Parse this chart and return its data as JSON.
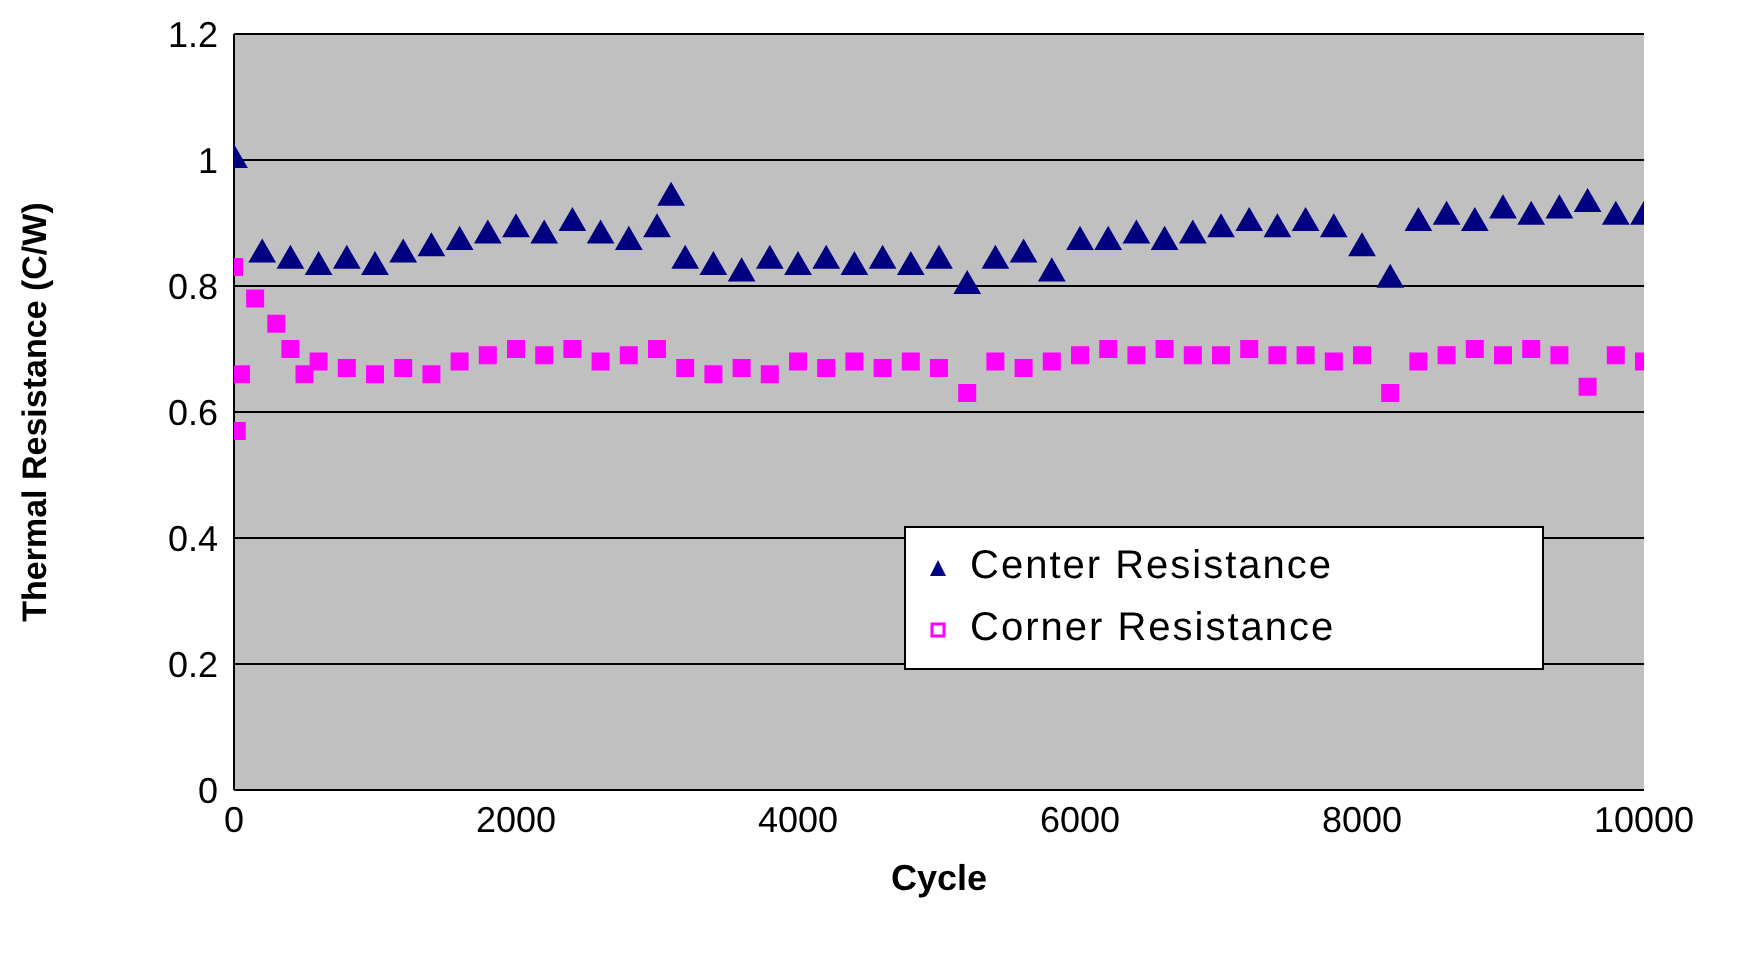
{
  "chart_data": {
    "type": "scatter",
    "xlabel": "Cycle",
    "ylabel": "Thermal Resistance (C/W)",
    "xlim": [
      0,
      10000
    ],
    "xticks": [
      0,
      2000,
      4000,
      6000,
      8000,
      10000
    ],
    "ylim": [
      0,
      1.2
    ],
    "yticks": [
      0,
      0.2,
      0.4,
      0.6,
      0.8,
      1,
      1.2
    ],
    "grid": "y",
    "legend": "bottom right",
    "series": [
      {
        "name": "Center Resistance",
        "color": "#000080",
        "marker": "triangle",
        "x": [
          0,
          200,
          400,
          600,
          800,
          1000,
          1200,
          1400,
          1600,
          1800,
          2000,
          2200,
          2400,
          2600,
          2800,
          3000,
          3100,
          3200,
          3400,
          3600,
          3800,
          4000,
          4200,
          4400,
          4600,
          4800,
          5000,
          5200,
          5400,
          5600,
          5800,
          6000,
          6200,
          6400,
          6600,
          6800,
          7000,
          7200,
          7400,
          7600,
          7800,
          8000,
          8200,
          8400,
          8600,
          8800,
          9000,
          9200,
          9400,
          9600,
          9800,
          10000
        ],
        "values": [
          1.0,
          0.85,
          0.84,
          0.83,
          0.84,
          0.83,
          0.85,
          0.86,
          0.87,
          0.88,
          0.89,
          0.88,
          0.9,
          0.88,
          0.87,
          0.89,
          0.94,
          0.84,
          0.83,
          0.82,
          0.84,
          0.83,
          0.84,
          0.83,
          0.84,
          0.83,
          0.84,
          0.8,
          0.84,
          0.85,
          0.82,
          0.87,
          0.87,
          0.88,
          0.87,
          0.88,
          0.89,
          0.9,
          0.89,
          0.9,
          0.89,
          0.86,
          0.81,
          0.9,
          0.91,
          0.9,
          0.92,
          0.91,
          0.92,
          0.93,
          0.91,
          0.91
        ]
      },
      {
        "name": "Corner Resistance",
        "color": "#ff00ff",
        "marker": "square",
        "x": [
          0,
          20,
          50,
          150,
          300,
          400,
          500,
          600,
          800,
          1000,
          1200,
          1400,
          1600,
          1800,
          2000,
          2200,
          2400,
          2600,
          2800,
          3000,
          3200,
          3400,
          3600,
          3800,
          4000,
          4200,
          4400,
          4600,
          4800,
          5000,
          5200,
          5400,
          5600,
          5800,
          6000,
          6200,
          6400,
          6600,
          6800,
          7000,
          7200,
          7400,
          7600,
          7800,
          8000,
          8200,
          8400,
          8600,
          8800,
          9000,
          9200,
          9400,
          9600,
          9800,
          10000
        ],
        "values": [
          0.83,
          0.57,
          0.66,
          0.78,
          0.74,
          0.7,
          0.66,
          0.68,
          0.67,
          0.66,
          0.67,
          0.66,
          0.68,
          0.69,
          0.7,
          0.69,
          0.7,
          0.68,
          0.69,
          0.7,
          0.67,
          0.66,
          0.67,
          0.66,
          0.68,
          0.67,
          0.68,
          0.67,
          0.68,
          0.67,
          0.63,
          0.68,
          0.67,
          0.68,
          0.69,
          0.7,
          0.69,
          0.7,
          0.69,
          0.69,
          0.7,
          0.69,
          0.69,
          0.68,
          0.69,
          0.63,
          0.68,
          0.69,
          0.7,
          0.69,
          0.7,
          0.69,
          0.64,
          0.69,
          0.68
        ]
      }
    ]
  }
}
